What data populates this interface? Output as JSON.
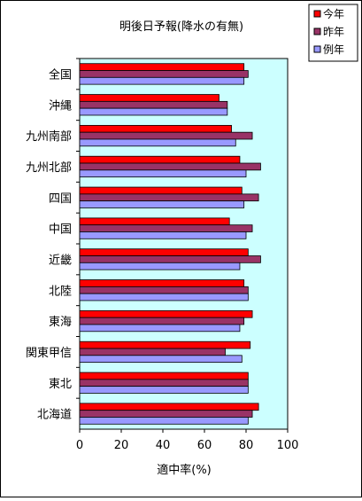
{
  "chart_data": {
    "type": "bar",
    "orientation": "horizontal",
    "title": "明後日予報(降水の有無)",
    "xlabel": "適中率(%)",
    "ylabel": "",
    "xlim": [
      0,
      100
    ],
    "xticks": [
      0,
      20,
      40,
      60,
      80,
      100
    ],
    "grid": false,
    "plot_background": "#ccffff",
    "legend_position": "top-right",
    "categories": [
      "全国",
      "沖縄",
      "九州南部",
      "九州北部",
      "四国",
      "中国",
      "近畿",
      "北陸",
      "東海",
      "関東甲信",
      "東北",
      "北海道"
    ],
    "series": [
      {
        "name": "今年",
        "color": "#ff0000",
        "values": [
          79,
          67,
          73,
          77,
          78,
          72,
          81,
          79,
          83,
          82,
          81,
          86
        ]
      },
      {
        "name": "昨年",
        "color": "#993366",
        "values": [
          81,
          71,
          83,
          87,
          86,
          83,
          87,
          81,
          79,
          70,
          81,
          83
        ]
      },
      {
        "name": "例年",
        "color": "#9999ff",
        "values": [
          79,
          71,
          75,
          80,
          79,
          80,
          77,
          81,
          77,
          78,
          81,
          81
        ]
      }
    ]
  }
}
